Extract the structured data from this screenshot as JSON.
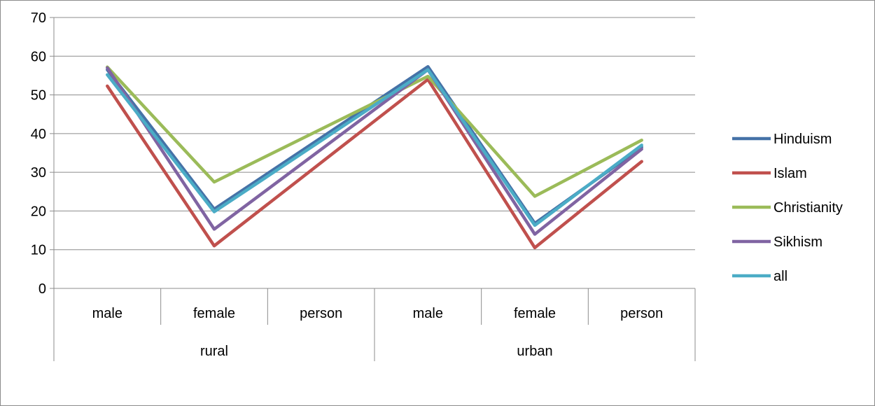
{
  "chart_data": {
    "type": "line",
    "title": "",
    "xlabel": "",
    "ylabel": "",
    "ylim": [
      0,
      70
    ],
    "yticks": [
      0,
      10,
      20,
      30,
      40,
      50,
      60,
      70
    ],
    "grid": "horizontal",
    "legend_position": "right",
    "groups": [
      {
        "label": "rural",
        "categories": [
          "male",
          "female",
          "person"
        ]
      },
      {
        "label": "urban",
        "categories": [
          "male",
          "female",
          "person"
        ]
      }
    ],
    "categories": [
      "male",
      "female",
      "person",
      "male",
      "female",
      "person"
    ],
    "series": [
      {
        "name": "Hinduism",
        "color": "#4572A7",
        "values": [
          56.5,
          20.5,
          null,
          57.3,
          16.8,
          36.5
        ]
      },
      {
        "name": "Islam",
        "color": "#C0504D",
        "values": [
          52.3,
          11.0,
          null,
          54.0,
          10.5,
          32.8
        ]
      },
      {
        "name": "Christianity",
        "color": "#9BBB59",
        "values": [
          57.2,
          27.5,
          null,
          54.8,
          23.8,
          38.3
        ]
      },
      {
        "name": "Sikhism",
        "color": "#8064A2",
        "values": [
          57.0,
          15.3,
          null,
          56.5,
          14.0,
          36.0
        ]
      },
      {
        "name": "all",
        "color": "#4BACC6",
        "values": [
          55.2,
          19.8,
          null,
          56.5,
          16.3,
          37.0
        ]
      }
    ]
  }
}
